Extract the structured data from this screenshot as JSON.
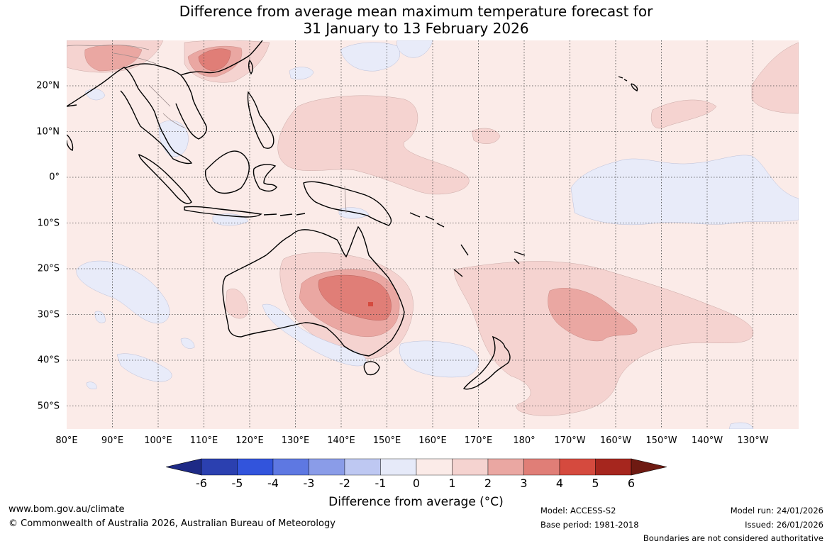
{
  "title": {
    "line1": "Difference from average mean maximum temperature forecast for",
    "line2": "31 January to 13 February 2026"
  },
  "map": {
    "lon_labels": [
      "80°E",
      "90°E",
      "100°E",
      "110°E",
      "120°E",
      "130°E",
      "140°E",
      "150°E",
      "160°E",
      "170°E",
      "180°",
      "170°W",
      "160°W",
      "150°W",
      "140°W",
      "130°W"
    ],
    "lat_labels": [
      "20°N",
      "10°N",
      "0°",
      "10°S",
      "20°S",
      "30°S",
      "40°S",
      "50°S"
    ],
    "background_color": "#fbebe8"
  },
  "colorbar": {
    "ticks": [
      "-6",
      "-5",
      "-4",
      "-3",
      "-2",
      "-1",
      "0",
      "1",
      "2",
      "3",
      "4",
      "5",
      "6"
    ],
    "colors": [
      "#1e2a86",
      "#2b40b0",
      "#3254dc",
      "#5e78e2",
      "#8a9ce8",
      "#bec8f2",
      "#e6eaf9",
      "#fbebe8",
      "#f5d3d0",
      "#eaa7a2",
      "#e07e77",
      "#d54a3e",
      "#a6261e",
      "#6e1a12"
    ],
    "label": "Difference from average (°C)"
  },
  "footer": {
    "website": "www.bom.gov.au/climate",
    "copyright": "© Commonwealth of Australia 2026, Australian Bureau of Meteorology",
    "model": "Model: ACCESS-S2",
    "base_period": "Base period: 1981-2018",
    "model_run": "Model run: 24/01/2026",
    "issued": "Issued: 26/01/2026",
    "disclaimer": "Boundaries are not considered authoritative"
  }
}
